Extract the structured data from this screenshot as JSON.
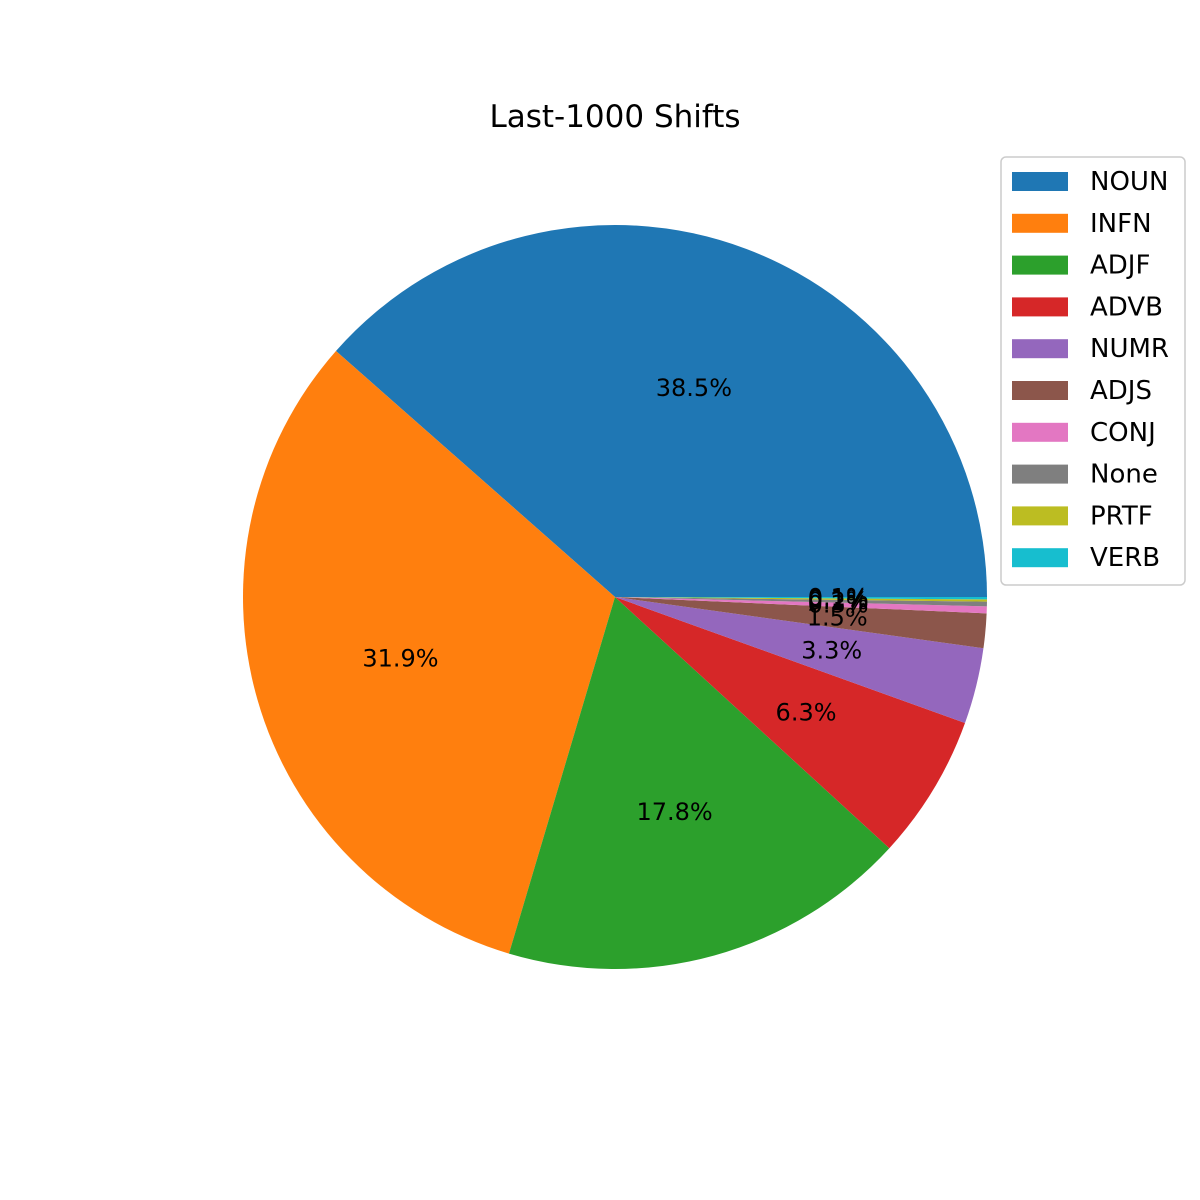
{
  "chart_data": {
    "type": "pie",
    "title": "Last-1000 Shifts",
    "labels": [
      "NOUN",
      "INFN",
      "ADJF",
      "ADVB",
      "NUMR",
      "ADJS",
      "CONJ",
      "None",
      "PRTF",
      "VERB"
    ],
    "values": [
      38.5,
      31.9,
      17.8,
      6.3,
      3.3,
      1.5,
      0.3,
      0.2,
      0.1,
      0.1
    ],
    "pct_labels": [
      "38.5%",
      "31.9%",
      "17.8%",
      "6.3%",
      "3.3%",
      "1.5%",
      "0.3%",
      "0.2%",
      "0.1%",
      "0.1%"
    ],
    "colors": [
      "#1f77b4",
      "#ff7f0e",
      "#2ca02c",
      "#d62728",
      "#9467bd",
      "#8c564b",
      "#e377c2",
      "#7f7f7f",
      "#bcbd22",
      "#17becf"
    ],
    "start_angle_deg": 0,
    "direction": "counterclockwise",
    "legend_position": "top-right"
  }
}
